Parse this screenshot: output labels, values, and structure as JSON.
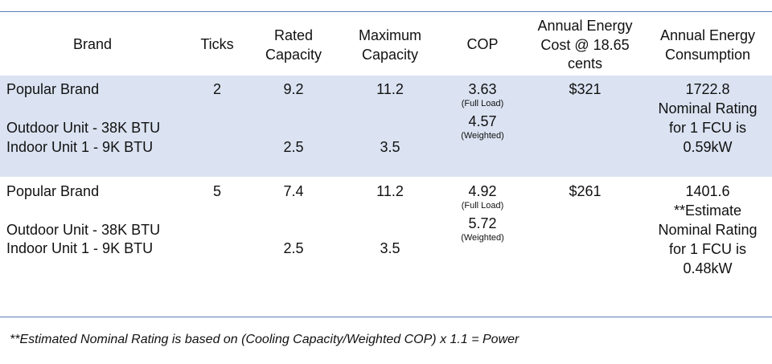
{
  "headers": {
    "brand": "Brand",
    "ticks": "Ticks",
    "rated_1": "Rated",
    "rated_2": "Capacity",
    "max_1": "Maximum",
    "max_2": "Capacity",
    "cop": "COP",
    "cost_1": "Annual Energy",
    "cost_2": "Cost @ 18.65",
    "cost_3": "cents",
    "cons_1": "Annual Energy",
    "cons_2": "Consumption"
  },
  "rows": [
    {
      "brand": "Popular Brand",
      "outdoor": "Outdoor Unit - 38K BTU",
      "indoor": "Indoor Unit 1 - 9K BTU",
      "ticks": "2",
      "rated_outdoor": "9.2",
      "rated_indoor": "2.5",
      "max_outdoor": "11.2",
      "max_indoor": "3.5",
      "cop_full": "3.63",
      "cop_full_label": "(Full Load)",
      "cop_weighted": "4.57",
      "cop_weighted_label": "(Weighted)",
      "cost": "$321",
      "consumption_lines": [
        "1722.8",
        "Nominal Rating",
        "for 1 FCU is",
        "0.59kW"
      ]
    },
    {
      "brand": "Popular Brand",
      "outdoor": "Outdoor Unit - 38K BTU",
      "indoor": "Indoor Unit 1 - 9K BTU",
      "ticks": "5",
      "rated_outdoor": "7.4",
      "rated_indoor": "2.5",
      "max_outdoor": "11.2",
      "max_indoor": "3.5",
      "cop_full": "4.92",
      "cop_full_label": "(Full Load)",
      "cop_weighted": "5.72",
      "cop_weighted_label": "(Weighted)",
      "cost": "$261",
      "consumption_lines": [
        "1401.6",
        "**Estimate",
        "Nominal Rating",
        "for 1 FCU is",
        "0.48kW"
      ]
    }
  ],
  "footnote": "**Estimated Nominal Rating is based on (Cooling Capacity/Weighted COP) x 1.1 = Power"
}
